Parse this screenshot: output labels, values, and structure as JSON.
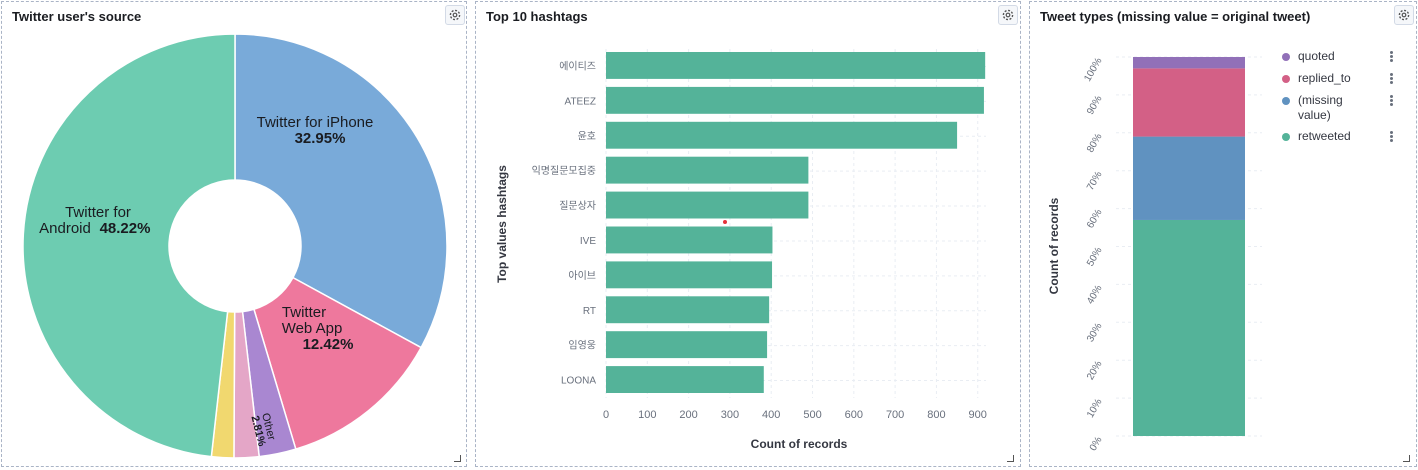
{
  "panels": {
    "source": {
      "title": "Twitter user's source"
    },
    "hashtags": {
      "title": "Top 10 hashtags"
    },
    "types": {
      "title": "Tweet types (missing value = original tweet)"
    }
  },
  "icons": {
    "settings": "gear-icon",
    "resize": "resize-handle-icon",
    "legend_menu": "vertical-dots-icon"
  },
  "chart_data": [
    {
      "type": "pie",
      "donut": true,
      "title": "Twitter user's source",
      "slices": [
        {
          "label_line1": "Twitter for iPhone",
          "label_line2": "",
          "percent": 32.95,
          "percent_label": "32.95%",
          "color": "#79aad9"
        },
        {
          "label_line1": "Twitter",
          "label_line2": "Web App",
          "percent": 12.42,
          "percent_label": "12.42%",
          "color": "#ee789d"
        },
        {
          "label_line1": "Other",
          "label_line2": "",
          "percent": 2.81,
          "percent_label": "2.81%",
          "color": "#a987d1"
        },
        {
          "label_line1": "",
          "label_line2": "",
          "percent": 1.9,
          "percent_label": "",
          "color": "#e4a6c7"
        },
        {
          "label_line1": "",
          "label_line2": "",
          "percent": 1.7,
          "percent_label": "",
          "color": "#f1d86f"
        },
        {
          "label_line1": "Twitter for",
          "label_line2": "Android",
          "percent": 48.22,
          "percent_label": "48.22%",
          "color": "#6dccb1"
        }
      ]
    },
    {
      "type": "bar",
      "orientation": "horizontal",
      "title": "Top 10 hashtags",
      "xlabel": "Count of records",
      "ylabel": "Top values hashtags",
      "xlim": [
        0,
        920
      ],
      "xticks": [
        0,
        100,
        200,
        300,
        400,
        500,
        600,
        700,
        800,
        900
      ],
      "grid": true,
      "color": "#54b399",
      "categories": [
        "에이티즈",
        "ATEEZ",
        "윤호",
        "익명질문모집중",
        "질문상자",
        "IVE",
        "아이브",
        "RT",
        "임영웅",
        "LOONA"
      ],
      "values": [
        918,
        915,
        850,
        490,
        490,
        403,
        402,
        395,
        390,
        382
      ]
    },
    {
      "type": "bar",
      "stacked": true,
      "percent": true,
      "title": "Tweet types (missing value = original tweet)",
      "ylabel": "Count of records",
      "ylim": [
        0,
        100
      ],
      "yticks": [
        "0%",
        "10%",
        "20%",
        "30%",
        "40%",
        "50%",
        "60%",
        "70%",
        "80%",
        "90%",
        "100%"
      ],
      "grid": true,
      "legend_position": "right",
      "series": [
        {
          "name": "retweeted",
          "value": 57,
          "color": "#54b399"
        },
        {
          "name": "(missing value)",
          "value": 22,
          "color": "#6092c0"
        },
        {
          "name": "replied_to",
          "value": 18,
          "color": "#d36086"
        },
        {
          "name": "quoted",
          "value": 3,
          "color": "#9170b8"
        }
      ],
      "legend": [
        "quoted",
        "replied_to",
        "(missing value)",
        "retweeted"
      ]
    }
  ]
}
